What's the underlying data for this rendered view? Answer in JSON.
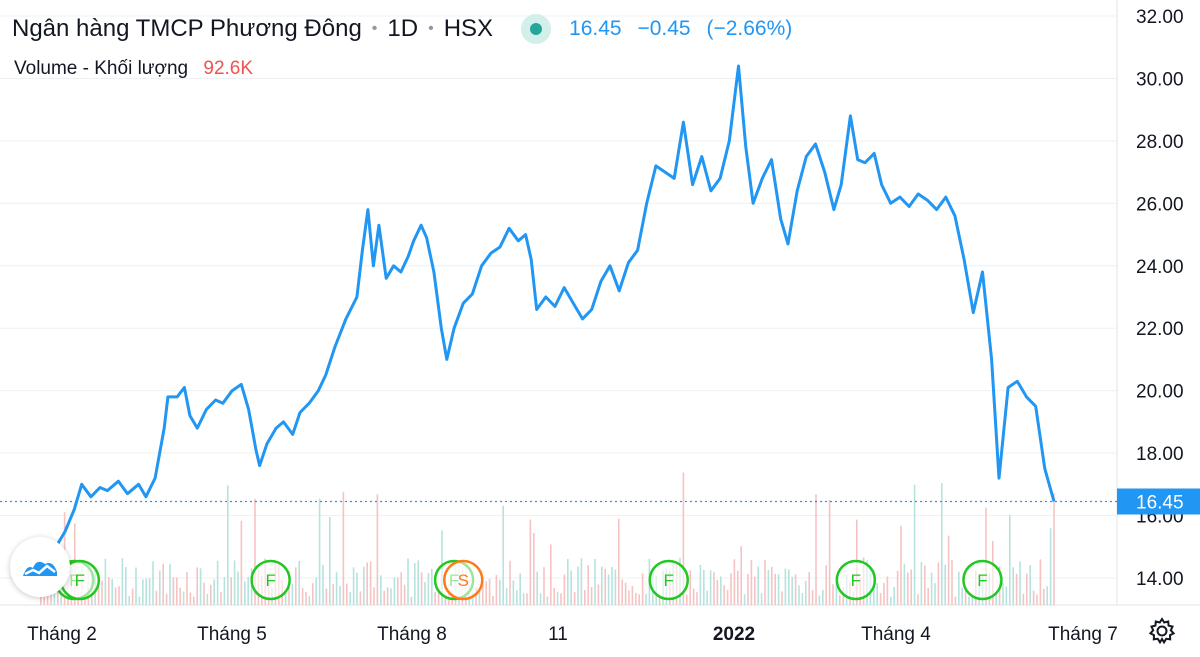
{
  "header": {
    "symbol_name": "Ngân hàng TMCP Phương Đông",
    "interval": "1D",
    "exchange": "HSX",
    "last_price": "16.45",
    "change": "−0.45",
    "change_percent": "(−2.66%)"
  },
  "volume_legend": {
    "label": "Volume - Khối lượng",
    "value": "92.6K"
  },
  "colors": {
    "line": "#2196f3",
    "price_tag": "#2196f3",
    "vol_up": "#b6e3dd",
    "vol_down": "#f6c3c3",
    "event_green": "#22c722",
    "event_orange": "#ff7a1a",
    "grid": "#eef0f3"
  },
  "icons": {
    "settings": "gear-icon",
    "logo": "tradingview-logo-icon"
  },
  "chart_data": {
    "type": "line",
    "y_axis": {
      "range": [
        13.3,
        32.3
      ],
      "ticks": [
        "32.00",
        "30.00",
        "28.00",
        "26.00",
        "24.00",
        "22.00",
        "20.00",
        "18.00",
        "16.00",
        "14.00"
      ]
    },
    "x_axis": {
      "ticks": [
        "Tháng 2",
        "Tháng 5",
        "Tháng 8",
        "11",
        "2022",
        "Tháng 4",
        "Tháng 7"
      ]
    },
    "last_value_label": "16.45",
    "series": [
      {
        "points": [
          [
            "2021-01-01",
            15.0
          ],
          [
            "2021-01-06",
            15.5
          ],
          [
            "2021-01-11",
            16.2
          ],
          [
            "2021-01-15",
            17.0
          ],
          [
            "2021-01-20",
            16.6
          ],
          [
            "2021-01-25",
            16.9
          ],
          [
            "2021-01-29",
            16.8
          ],
          [
            "2021-02-04",
            17.1
          ],
          [
            "2021-02-09",
            16.7
          ],
          [
            "2021-02-15",
            17.0
          ],
          [
            "2021-02-19",
            16.6
          ],
          [
            "2021-02-24",
            17.2
          ],
          [
            "2021-03-01",
            18.8
          ],
          [
            "2021-03-03",
            19.8
          ],
          [
            "2021-03-08",
            19.8
          ],
          [
            "2021-03-12",
            20.1
          ],
          [
            "2021-03-15",
            19.2
          ],
          [
            "2021-03-19",
            18.8
          ],
          [
            "2021-03-24",
            19.4
          ],
          [
            "2021-03-29",
            19.7
          ],
          [
            "2021-04-02",
            19.6
          ],
          [
            "2021-04-07",
            20.0
          ],
          [
            "2021-04-12",
            20.2
          ],
          [
            "2021-04-16",
            19.4
          ],
          [
            "2021-04-20",
            18.1
          ],
          [
            "2021-04-22",
            17.6
          ],
          [
            "2021-04-26",
            18.3
          ],
          [
            "2021-05-01",
            18.8
          ],
          [
            "2021-05-05",
            19.0
          ],
          [
            "2021-05-10",
            18.6
          ],
          [
            "2021-05-14",
            19.3
          ],
          [
            "2021-05-19",
            19.6
          ],
          [
            "2021-05-24",
            20.0
          ],
          [
            "2021-05-28",
            20.5
          ],
          [
            "2021-06-02",
            21.4
          ],
          [
            "2021-06-08",
            22.3
          ],
          [
            "2021-06-14",
            23.0
          ],
          [
            "2021-06-17",
            24.5
          ],
          [
            "2021-06-20",
            25.8
          ],
          [
            "2021-06-23",
            24.0
          ],
          [
            "2021-06-26",
            25.3
          ],
          [
            "2021-06-30",
            23.6
          ],
          [
            "2021-07-04",
            24.0
          ],
          [
            "2021-07-08",
            23.8
          ],
          [
            "2021-07-12",
            24.3
          ],
          [
            "2021-07-15",
            24.8
          ],
          [
            "2021-07-19",
            25.3
          ],
          [
            "2021-07-22",
            24.9
          ],
          [
            "2021-07-26",
            23.8
          ],
          [
            "2021-07-30",
            22.0
          ],
          [
            "2021-08-02",
            21.0
          ],
          [
            "2021-08-06",
            22.0
          ],
          [
            "2021-08-11",
            22.8
          ],
          [
            "2021-08-16",
            23.1
          ],
          [
            "2021-08-21",
            24.0
          ],
          [
            "2021-08-26",
            24.4
          ],
          [
            "2021-08-31",
            24.6
          ],
          [
            "2021-09-05",
            25.2
          ],
          [
            "2021-09-10",
            24.8
          ],
          [
            "2021-09-14",
            25.0
          ],
          [
            "2021-09-17",
            24.2
          ],
          [
            "2021-09-20",
            22.6
          ],
          [
            "2021-09-25",
            23.0
          ],
          [
            "2021-09-30",
            22.7
          ],
          [
            "2021-10-05",
            23.3
          ],
          [
            "2021-10-10",
            22.8
          ],
          [
            "2021-10-15",
            22.3
          ],
          [
            "2021-10-20",
            22.6
          ],
          [
            "2021-10-25",
            23.5
          ],
          [
            "2021-10-30",
            24.0
          ],
          [
            "2021-11-04",
            23.2
          ],
          [
            "2021-11-09",
            24.1
          ],
          [
            "2021-11-14",
            24.5
          ],
          [
            "2021-11-19",
            26.0
          ],
          [
            "2021-11-24",
            27.2
          ],
          [
            "2021-11-29",
            27.0
          ],
          [
            "2021-12-04",
            26.8
          ],
          [
            "2021-12-09",
            28.6
          ],
          [
            "2021-12-14",
            26.6
          ],
          [
            "2021-12-19",
            27.5
          ],
          [
            "2021-12-24",
            26.4
          ],
          [
            "2021-12-29",
            26.8
          ],
          [
            "2022-01-03",
            28.0
          ],
          [
            "2022-01-08",
            30.4
          ],
          [
            "2022-01-12",
            27.8
          ],
          [
            "2022-01-16",
            26.0
          ],
          [
            "2022-01-21",
            26.8
          ],
          [
            "2022-01-26",
            27.4
          ],
          [
            "2022-01-31",
            25.5
          ],
          [
            "2022-02-04",
            24.7
          ],
          [
            "2022-02-09",
            26.4
          ],
          [
            "2022-02-14",
            27.5
          ],
          [
            "2022-02-19",
            27.9
          ],
          [
            "2022-02-24",
            27.0
          ],
          [
            "2022-03-01",
            25.8
          ],
          [
            "2022-03-05",
            26.6
          ],
          [
            "2022-03-10",
            28.8
          ],
          [
            "2022-03-14",
            27.4
          ],
          [
            "2022-03-18",
            27.3
          ],
          [
            "2022-03-23",
            27.6
          ],
          [
            "2022-03-27",
            26.6
          ],
          [
            "2022-04-01",
            26.0
          ],
          [
            "2022-04-06",
            26.2
          ],
          [
            "2022-04-11",
            25.9
          ],
          [
            "2022-04-16",
            26.3
          ],
          [
            "2022-04-21",
            26.1
          ],
          [
            "2022-04-26",
            25.8
          ],
          [
            "2022-05-01",
            26.2
          ],
          [
            "2022-05-06",
            25.6
          ],
          [
            "2022-05-11",
            24.2
          ],
          [
            "2022-05-16",
            22.5
          ],
          [
            "2022-05-21",
            23.8
          ],
          [
            "2022-05-26",
            21.0
          ],
          [
            "2022-05-30",
            17.2
          ],
          [
            "2022-06-04",
            20.1
          ],
          [
            "2022-06-09",
            20.3
          ],
          [
            "2022-06-14",
            19.8
          ],
          [
            "2022-06-19",
            19.5
          ],
          [
            "2022-06-24",
            17.5
          ],
          [
            "2022-06-29",
            16.45
          ]
        ]
      }
    ],
    "events": [
      {
        "date": "2021-01-11",
        "label": "F",
        "kind": "green"
      },
      {
        "date": "2021-01-14",
        "label": "F",
        "kind": "green"
      },
      {
        "date": "2021-04-28",
        "label": "F",
        "kind": "green"
      },
      {
        "date": "2021-08-06",
        "label": "F",
        "kind": "green"
      },
      {
        "date": "2021-08-11",
        "label": "S",
        "kind": "orange"
      },
      {
        "date": "2021-12-01",
        "label": "F",
        "kind": "green"
      },
      {
        "date": "2022-03-13",
        "label": "F",
        "kind": "green"
      },
      {
        "date": "2022-05-21",
        "label": "F",
        "kind": "green"
      }
    ]
  }
}
